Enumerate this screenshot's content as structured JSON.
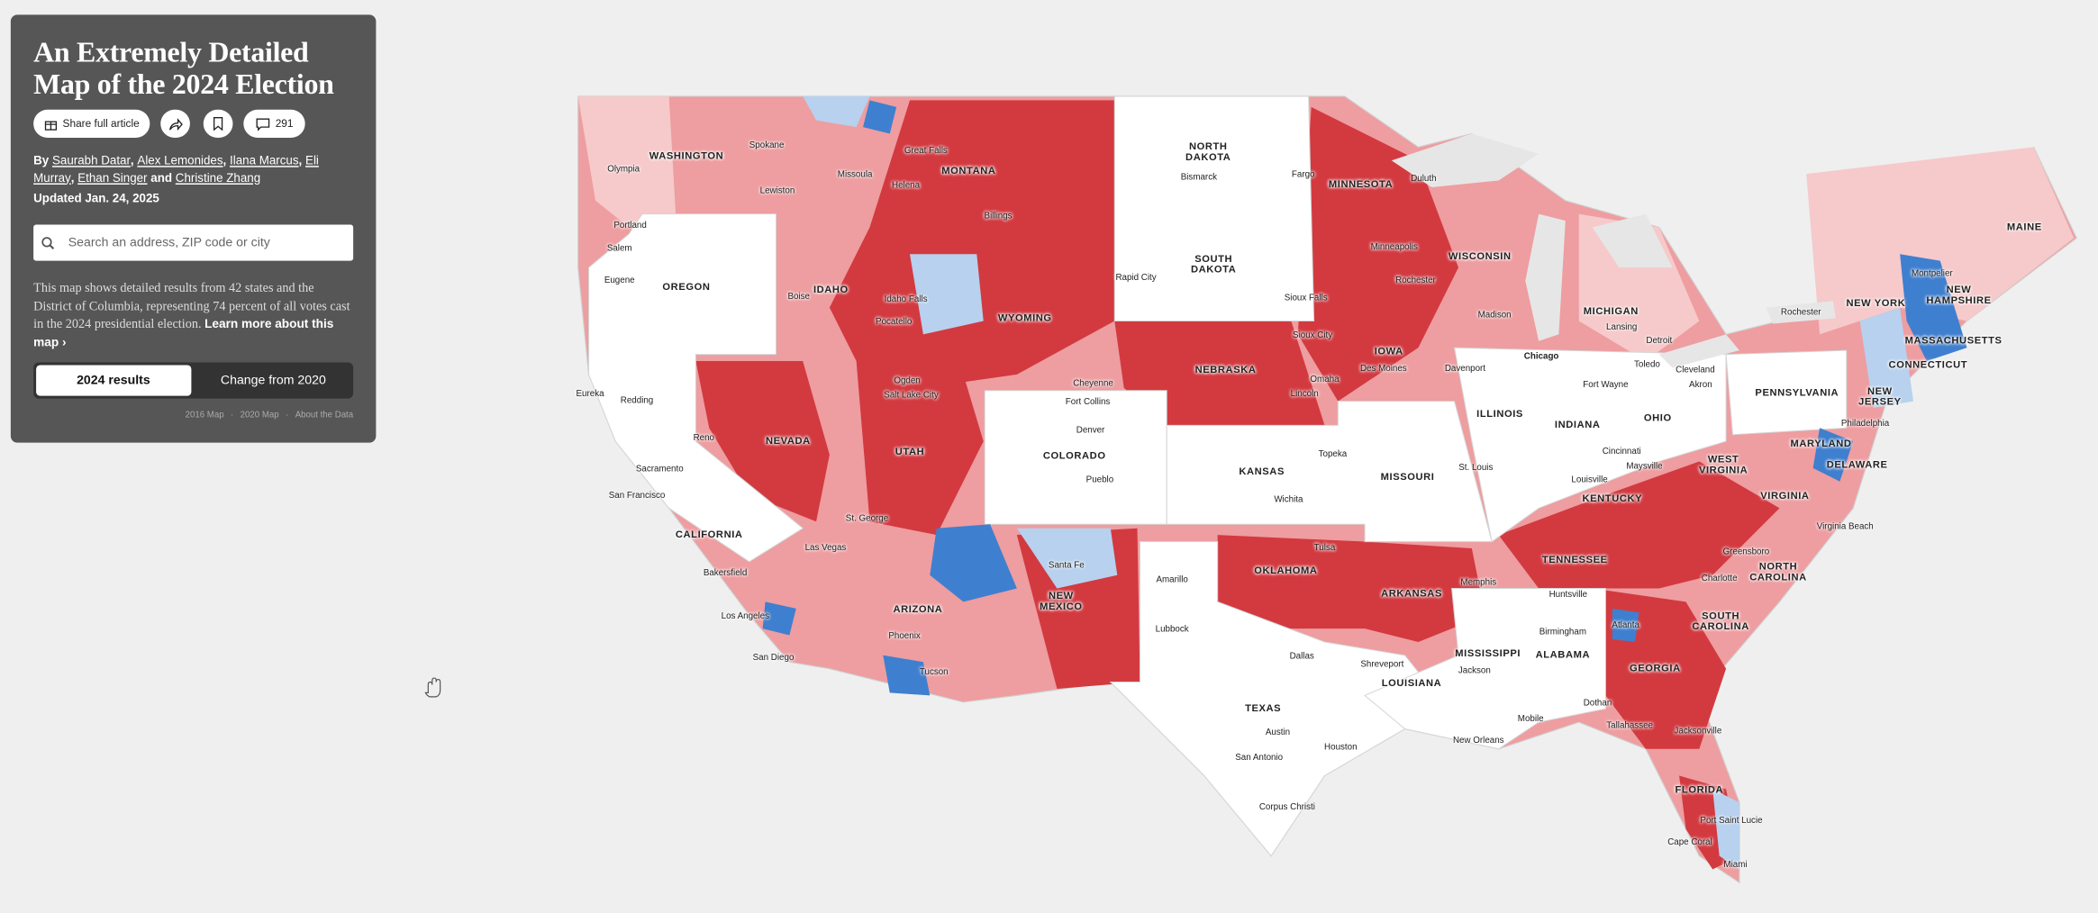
{
  "header": {
    "title": "An Extremely Detailed Map of the 2024 Election"
  },
  "toolbar": {
    "share_label": "Share full article",
    "comments": "291"
  },
  "byline": {
    "prefix": "By",
    "authors": [
      "Saurabh Datar",
      "Alex Lemonides",
      "Ilana Marcus",
      "Eli Murray",
      "Ethan Singer",
      "Christine Zhang"
    ],
    "separator": ",",
    "conjunction": "and"
  },
  "updated": "Updated Jan. 24, 2025",
  "search": {
    "placeholder": "Search an address, ZIP code or city"
  },
  "description": {
    "text": "This map shows detailed results from 42 states and the District of Columbia, representing 74 percent of all votes cast in the 2024 presidential election.",
    "link": "Learn more about this map ›"
  },
  "tabs": [
    "2024 results",
    "Change from 2020"
  ],
  "footer": {
    "links": [
      "2016 Map",
      "2020 Map",
      "About the Data"
    ],
    "separator": "·"
  },
  "map": {
    "states": [
      "WASHINGTON",
      "OREGON",
      "IDAHO",
      "MONTANA",
      "WYOMING",
      "NORTH DAKOTA",
      "SOUTH DAKOTA",
      "NEBRASKA",
      "MINNESOTA",
      "WISCONSIN",
      "IOWA",
      "ILLINOIS",
      "INDIANA",
      "OHIO",
      "MICHIGAN",
      "NEVADA",
      "CALIFORNIA",
      "UTAH",
      "COLORADO",
      "KANSAS",
      "MISSOURI",
      "ARIZONA",
      "NEW MEXICO",
      "OKLAHOMA",
      "ARKANSAS",
      "TEXAS",
      "LOUISIANA",
      "MISSISSIPPI",
      "ALABAMA",
      "TENNESSEE",
      "KENTUCKY",
      "GEORGIA",
      "FLORIDA",
      "SOUTH CAROLINA",
      "NORTH CAROLINA",
      "VIRGINIA",
      "WEST VIRGINIA",
      "MARYLAND",
      "DELAWARE",
      "PENNSYLVANIA",
      "NEW JERSEY",
      "NEW YORK",
      "CONNECTICUT",
      "MASSACHUSETTS",
      "NEW HAMPSHIRE",
      "MAINE"
    ],
    "cities": [
      "Olympia",
      "Spokane",
      "Lewiston",
      "Missoula",
      "Great Falls",
      "Helena",
      "Billings",
      "Portland",
      "Salem",
      "Eugene",
      "Boise",
      "Idaho Falls",
      "Pocatello",
      "Bismarck",
      "Fargo",
      "Duluth",
      "Minneapolis",
      "Rochester",
      "Rapid City",
      "Sioux Falls",
      "Sioux City",
      "Madison",
      "Des Moines",
      "Davenport",
      "Omaha",
      "Lincoln",
      "Chicago",
      "Fort Wayne",
      "Toledo",
      "Detroit",
      "Lansing",
      "Cleveland",
      "Akron",
      "Cincinnati",
      "Louisville",
      "Maysville",
      "St. Louis",
      "Eureka",
      "Redding",
      "Reno",
      "Sacramento",
      "San Francisco",
      "Ogden",
      "Salt Lake City",
      "Cheyenne",
      "Fort Collins",
      "Denver",
      "Pueblo",
      "Topeka",
      "Wichita",
      "St. George",
      "Las Vegas",
      "Bakersfield",
      "Los Angeles",
      "San Diego",
      "Phoenix",
      "Tucson",
      "Santa Fe",
      "Amarillo",
      "Lubbock",
      "Tulsa",
      "Memphis",
      "Huntsville",
      "Birmingham",
      "Dallas",
      "Shreveport",
      "Jackson",
      "Austin",
      "Houston",
      "San Antonio",
      "Corpus Christi",
      "New Orleans",
      "Mobile",
      "Dothan",
      "Tallahassee",
      "Jacksonville",
      "Atlanta",
      "Greensboro",
      "Charlotte",
      "Virginia Beach",
      "Port Saint Lucie",
      "Cape Coral",
      "Miami",
      "Philadelphia",
      "Rochester",
      "Montpelier"
    ]
  }
}
